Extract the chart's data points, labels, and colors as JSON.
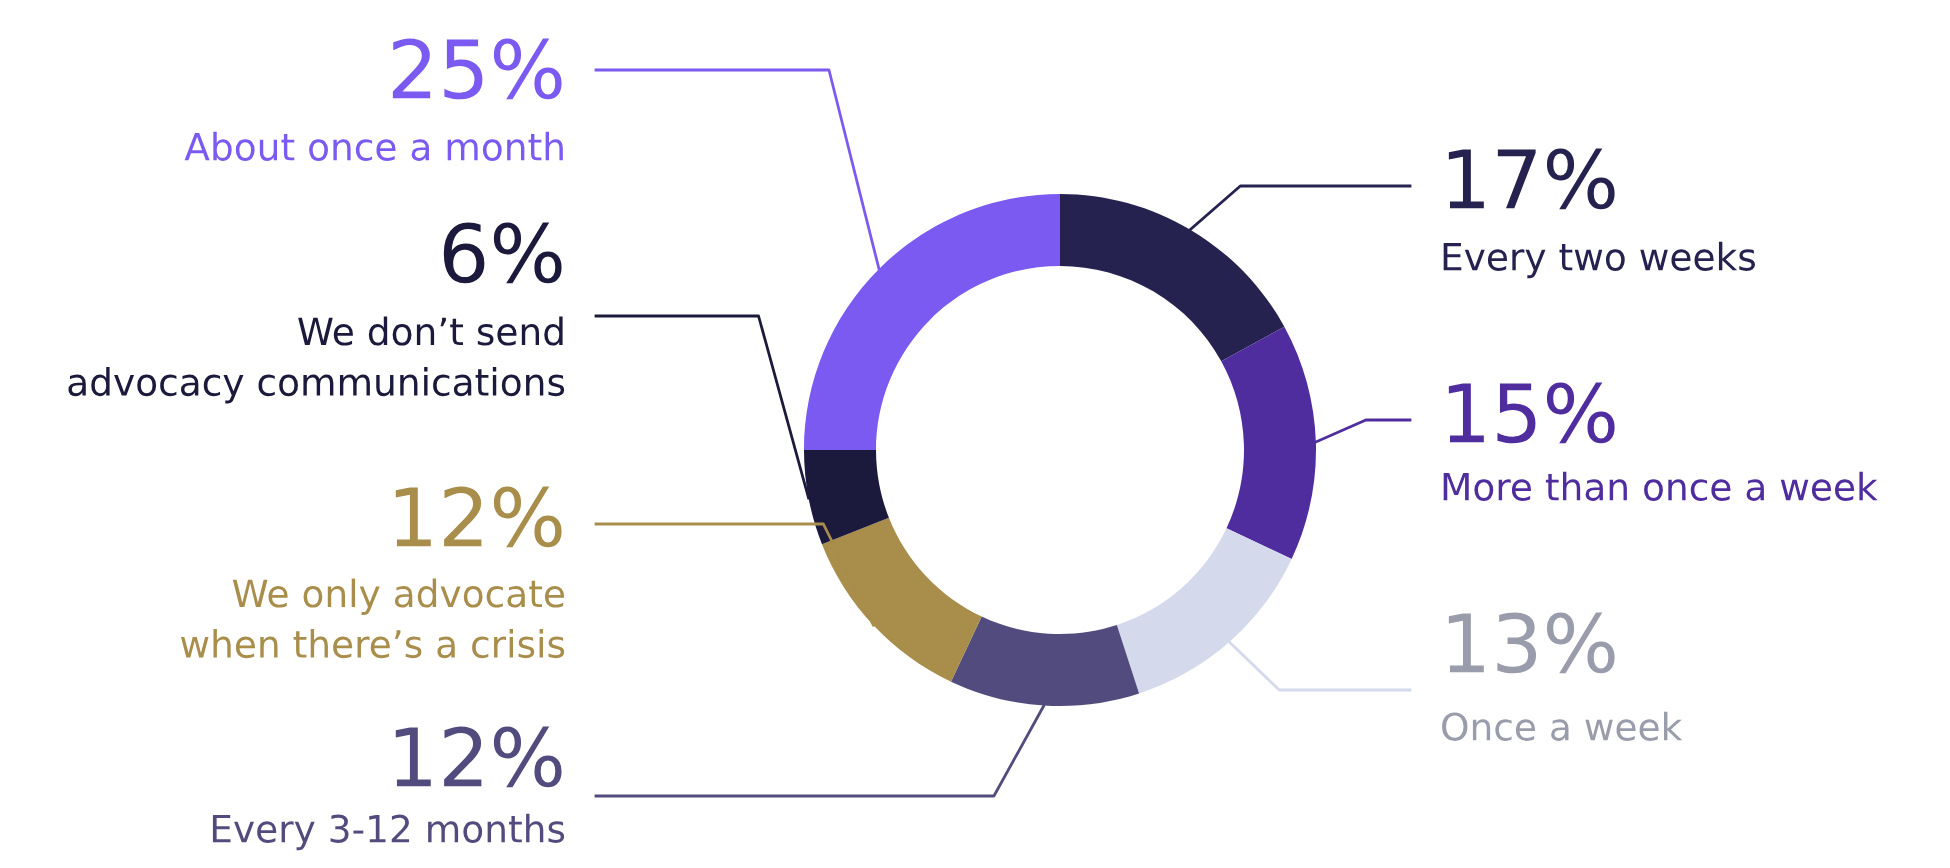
{
  "chart_data": {
    "type": "donut",
    "categories": [
      "Every two weeks",
      "More than once a week",
      "Once a week",
      "Every 3-12 months",
      "We only advocate\nwhen there’s a crisis",
      "We don’t send\nadvocacy communications",
      "About once a month"
    ],
    "values": [
      17,
      15,
      13,
      12,
      12,
      6,
      25
    ],
    "value_labels": [
      "17%",
      "15%",
      "13%",
      "12%",
      "12%",
      "6%",
      "25%"
    ],
    "colors": [
      "#25224f",
      "#4f2d9f",
      "#d5d9ec",
      "#524c7e",
      "#a88d4b",
      "#1c1a3c",
      "#7a5af0"
    ]
  }
}
